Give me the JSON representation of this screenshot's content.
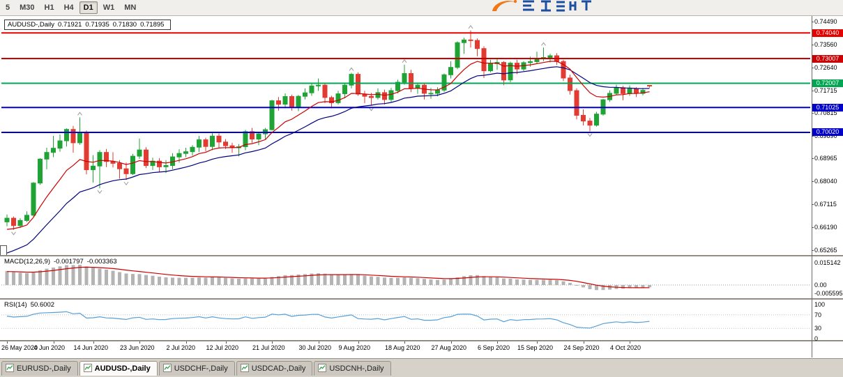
{
  "toolbar": {
    "timeframes": [
      "5",
      "M30",
      "H1",
      "H4",
      "D1",
      "W1",
      "MN"
    ],
    "active_timeframe": "D1"
  },
  "chart": {
    "info": {
      "symbol": "AUDUSD-,Daily",
      "open": "0.71921",
      "high": "0.71935",
      "low": "0.71830",
      "close": "0.71895"
    }
  },
  "indicators": {
    "macd": {
      "name": "MACD(12,26,9)",
      "value_main": "-0.001797",
      "value_signal": "-0.003363",
      "axis": [
        {
          "t": "0.015142",
          "v": 0.015142
        },
        {
          "t": "0.00",
          "v": 0
        },
        {
          "t": "-0.005595",
          "v": -0.005595
        }
      ]
    },
    "rsi": {
      "name": "RSI(14)",
      "value": "50.6002",
      "axis": [
        {
          "t": "100",
          "v": 100
        },
        {
          "t": "70",
          "v": 70
        },
        {
          "t": "30",
          "v": 30
        },
        {
          "t": "0",
          "v": 0
        }
      ],
      "levels": [
        70,
        30
      ]
    }
  },
  "chart_data": {
    "type": "candlestick",
    "symbol": "AUDUSD",
    "timeframe": "Daily",
    "y_ticks": [
      {
        "t": "0.74490",
        "v": 0.7449
      },
      {
        "t": "0.73560",
        "v": 0.7356
      },
      {
        "t": "0.72640",
        "v": 0.7264
      },
      {
        "t": "0.71715",
        "v": 0.71715
      },
      {
        "t": "0.70815",
        "v": 0.70815
      },
      {
        "t": "0.69890",
        "v": 0.6989
      },
      {
        "t": "0.68965",
        "v": 0.68965
      },
      {
        "t": "0.68040",
        "v": 0.6804
      },
      {
        "t": "0.67115",
        "v": 0.67115
      },
      {
        "t": "0.66190",
        "v": 0.6619
      },
      {
        "t": "0.65265",
        "v": 0.65265
      }
    ],
    "hlines": [
      {
        "label": "0.74040",
        "v": 0.7404,
        "color": "#E60000",
        "w": 2
      },
      {
        "label": "0.73007",
        "v": 0.73007,
        "color": "#CC0000",
        "w": 2
      },
      {
        "label": "0.72007",
        "v": 0.72007,
        "color": "#00A651",
        "w": 2
      },
      {
        "label": "0.71025",
        "v": 0.71025,
        "color": "#0000CC",
        "w": 2
      },
      {
        "label": "0.70020",
        "v": 0.7002,
        "color": "#0000CC",
        "w": 2
      }
    ],
    "x_labels": [
      {
        "t": "26 May 2020",
        "i": 0
      },
      {
        "t": "4 Jun 2020",
        "i": 7
      },
      {
        "t": "14 Jun 2020",
        "i": 13
      },
      {
        "t": "23 Jun 2020",
        "i": 20
      },
      {
        "t": "2 Jul 2020",
        "i": 27
      },
      {
        "t": "12 Jul 2020",
        "i": 33
      },
      {
        "t": "21 Jul 2020",
        "i": 40
      },
      {
        "t": "30 Jul 2020",
        "i": 47
      },
      {
        "t": "9 Aug 2020",
        "i": 53
      },
      {
        "t": "18 Aug 2020",
        "i": 60
      },
      {
        "t": "27 Aug 2020",
        "i": 67
      },
      {
        "t": "6 Sep 2020",
        "i": 74
      },
      {
        "t": "15 Sep 2020",
        "i": 80
      },
      {
        "t": "24 Sep 2020",
        "i": 87
      },
      {
        "t": "4 Oct 2020",
        "i": 94
      }
    ],
    "moving_averages": [
      {
        "name": "slow",
        "period": 21,
        "color": "#00007F"
      },
      {
        "name": "fast",
        "period": 10,
        "color": "#CC0000"
      }
    ],
    "fractals": {
      "up": [
        [
          11,
          0.7063
        ],
        [
          52,
          0.7243
        ],
        [
          60,
          0.7276
        ],
        [
          70,
          0.7414
        ],
        [
          81,
          0.7345
        ]
      ],
      "down": [
        [
          1,
          0.6608
        ],
        [
          14,
          0.6776
        ],
        [
          18,
          0.681
        ],
        [
          55,
          0.711
        ],
        [
          88,
          0.7006
        ]
      ]
    },
    "candles": [
      [
        0.664,
        0.667,
        0.6622,
        0.6655
      ],
      [
        0.6655,
        0.6662,
        0.6608,
        0.6625
      ],
      [
        0.6625,
        0.6655,
        0.6615,
        0.6646
      ],
      [
        0.6646,
        0.6683,
        0.664,
        0.6667
      ],
      [
        0.6667,
        0.6801,
        0.6662,
        0.6797
      ],
      [
        0.6797,
        0.6898,
        0.679,
        0.6894
      ],
      [
        0.6894,
        0.694,
        0.6853,
        0.6921
      ],
      [
        0.6921,
        0.6988,
        0.6902,
        0.6938
      ],
      [
        0.6938,
        0.6994,
        0.6924,
        0.6968
      ],
      [
        0.6968,
        0.7018,
        0.6945,
        0.7014
      ],
      [
        0.7014,
        0.7028,
        0.692,
        0.696
      ],
      [
        0.696,
        0.7063,
        0.6952,
        0.6999
      ],
      [
        0.6999,
        0.701,
        0.6832,
        0.6851
      ],
      [
        0.6851,
        0.691,
        0.6799,
        0.6866
      ],
      [
        0.6866,
        0.693,
        0.6776,
        0.6921
      ],
      [
        0.6921,
        0.6935,
        0.6862,
        0.6884
      ],
      [
        0.6884,
        0.6922,
        0.686,
        0.6877
      ],
      [
        0.6877,
        0.689,
        0.6815,
        0.6855
      ],
      [
        0.6855,
        0.688,
        0.681,
        0.6835
      ],
      [
        0.6835,
        0.6915,
        0.683,
        0.6906
      ],
      [
        0.6906,
        0.6977,
        0.6895,
        0.6931
      ],
      [
        0.6931,
        0.6942,
        0.6858,
        0.6868
      ],
      [
        0.6868,
        0.69,
        0.685,
        0.6886
      ],
      [
        0.6886,
        0.6898,
        0.6842,
        0.6863
      ],
      [
        0.6863,
        0.689,
        0.6838,
        0.6868
      ],
      [
        0.6868,
        0.6918,
        0.6853,
        0.6903
      ],
      [
        0.6903,
        0.6934,
        0.688,
        0.6917
      ],
      [
        0.6917,
        0.694,
        0.6902,
        0.6924
      ],
      [
        0.6924,
        0.695,
        0.6908,
        0.6942
      ],
      [
        0.6942,
        0.6988,
        0.6922,
        0.6972
      ],
      [
        0.6972,
        0.698,
        0.6925,
        0.6945
      ],
      [
        0.6945,
        0.6999,
        0.693,
        0.6987
      ],
      [
        0.6987,
        0.6998,
        0.694,
        0.6963
      ],
      [
        0.6963,
        0.6975,
        0.6935,
        0.6948
      ],
      [
        0.6948,
        0.696,
        0.692,
        0.694
      ],
      [
        0.694,
        0.6955,
        0.6905,
        0.6944
      ],
      [
        0.6944,
        0.7012,
        0.693,
        0.7005
      ],
      [
        0.7005,
        0.702,
        0.696,
        0.6975
      ],
      [
        0.6975,
        0.7002,
        0.695,
        0.6996
      ],
      [
        0.6996,
        0.702,
        0.6975,
        0.7013
      ],
      [
        0.7013,
        0.7134,
        0.701,
        0.713
      ],
      [
        0.713,
        0.7145,
        0.709,
        0.7116
      ],
      [
        0.7116,
        0.716,
        0.71,
        0.7147
      ],
      [
        0.7147,
        0.7155,
        0.709,
        0.7103
      ],
      [
        0.7103,
        0.7153,
        0.7088,
        0.7148
      ],
      [
        0.7148,
        0.718,
        0.7135,
        0.7162
      ],
      [
        0.7162,
        0.7198,
        0.715,
        0.719
      ],
      [
        0.719,
        0.722,
        0.717,
        0.7193
      ],
      [
        0.7193,
        0.72,
        0.712,
        0.7143
      ],
      [
        0.7143,
        0.715,
        0.71,
        0.7122
      ],
      [
        0.7122,
        0.717,
        0.7115,
        0.7158
      ],
      [
        0.7158,
        0.72,
        0.714,
        0.7193
      ],
      [
        0.7193,
        0.7243,
        0.718,
        0.7237
      ],
      [
        0.7237,
        0.7245,
        0.715,
        0.7157
      ],
      [
        0.7157,
        0.717,
        0.712,
        0.7148
      ],
      [
        0.7148,
        0.7162,
        0.711,
        0.7143
      ],
      [
        0.7143,
        0.718,
        0.7135,
        0.7163
      ],
      [
        0.7163,
        0.7175,
        0.7115,
        0.7135
      ],
      [
        0.7135,
        0.7182,
        0.7125,
        0.7171
      ],
      [
        0.7171,
        0.7215,
        0.716,
        0.7205
      ],
      [
        0.7205,
        0.7276,
        0.7195,
        0.724
      ],
      [
        0.724,
        0.7255,
        0.7165,
        0.718
      ],
      [
        0.718,
        0.7202,
        0.7158,
        0.7193
      ],
      [
        0.7193,
        0.72,
        0.7135,
        0.716
      ],
      [
        0.716,
        0.7182,
        0.7138,
        0.716
      ],
      [
        0.716,
        0.7185,
        0.7148,
        0.7173
      ],
      [
        0.7173,
        0.724,
        0.7165,
        0.7235
      ],
      [
        0.7235,
        0.729,
        0.722,
        0.7265
      ],
      [
        0.7265,
        0.737,
        0.7258,
        0.7365
      ],
      [
        0.7365,
        0.7385,
        0.732,
        0.7376
      ],
      [
        0.7376,
        0.7414,
        0.7345,
        0.7374
      ],
      [
        0.7374,
        0.7382,
        0.731,
        0.7341
      ],
      [
        0.7341,
        0.735,
        0.7222,
        0.7251
      ],
      [
        0.7251,
        0.7296,
        0.7245,
        0.728
      ],
      [
        0.728,
        0.73,
        0.7255,
        0.7285
      ],
      [
        0.7285,
        0.729,
        0.7193,
        0.7214
      ],
      [
        0.7214,
        0.7288,
        0.7205,
        0.7282
      ],
      [
        0.7282,
        0.7296,
        0.7238,
        0.7258
      ],
      [
        0.7258,
        0.729,
        0.725,
        0.7284
      ],
      [
        0.7284,
        0.7308,
        0.7268,
        0.7288
      ],
      [
        0.7288,
        0.7328,
        0.728,
        0.7302
      ],
      [
        0.7302,
        0.7345,
        0.729,
        0.7305
      ],
      [
        0.7305,
        0.732,
        0.7285,
        0.7312
      ],
      [
        0.7312,
        0.7322,
        0.7275,
        0.7289
      ],
      [
        0.7289,
        0.7295,
        0.721,
        0.7222
      ],
      [
        0.7222,
        0.7235,
        0.7155,
        0.7171
      ],
      [
        0.7171,
        0.718,
        0.7055,
        0.7071
      ],
      [
        0.7071,
        0.7095,
        0.703,
        0.7048
      ],
      [
        0.7048,
        0.706,
        0.7006,
        0.7031
      ],
      [
        0.7031,
        0.7085,
        0.7025,
        0.7076
      ],
      [
        0.7076,
        0.7138,
        0.707,
        0.7134
      ],
      [
        0.7134,
        0.7172,
        0.7125,
        0.716
      ],
      [
        0.716,
        0.7195,
        0.7152,
        0.7183
      ],
      [
        0.7183,
        0.719,
        0.7132,
        0.7159
      ],
      [
        0.7159,
        0.7192,
        0.715,
        0.7179
      ],
      [
        0.7179,
        0.7185,
        0.7145,
        0.716
      ],
      [
        0.716,
        0.7182,
        0.7152,
        0.7172
      ],
      [
        0.71921,
        0.71935,
        0.7183,
        0.71895
      ]
    ]
  },
  "colors": {
    "up": "#1FA335",
    "down": "#E23B32",
    "ma_fast": "#CC0000",
    "ma_slow": "#00007F",
    "macd_bar": "#B4B4B4",
    "macd_signal": "#CC0000",
    "rsi_line": "#56A0D8"
  },
  "tabs": [
    {
      "label": "EURUSD-,Daily",
      "active": false
    },
    {
      "label": "AUDUSD-,Daily",
      "active": true
    },
    {
      "label": "USDCHF-,Daily",
      "active": false
    },
    {
      "label": "USDCAD-,Daily",
      "active": false
    },
    {
      "label": "USDCNH-,Daily",
      "active": false
    }
  ]
}
